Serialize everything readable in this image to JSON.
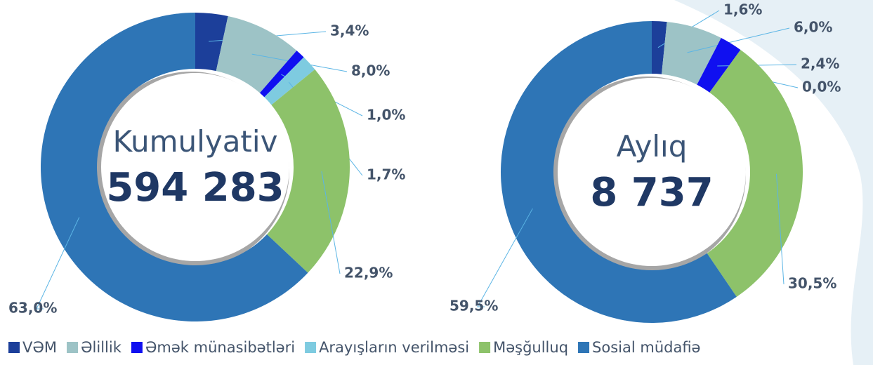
{
  "chart_data": [
    {
      "type": "pie",
      "center_label": "Kumulyativ",
      "center_value": "594 283",
      "categories": [
        "VƏM",
        "Əlillik",
        "Əmək münasibətləri",
        "Arayışların verilməsi",
        "Məşğulluq",
        "Sosial müdafiə"
      ],
      "values": [
        3.4,
        8.0,
        1.0,
        1.7,
        22.9,
        63.0
      ],
      "value_labels": [
        "3,4%",
        "8,0%",
        "1,0%",
        "1,7%",
        "22,9%",
        "63,0%"
      ],
      "colors": [
        "#1c3f9a",
        "#9dc3c6",
        "#1010f0",
        "#7ecbe0",
        "#8dc26a",
        "#2e75b6"
      ]
    },
    {
      "type": "pie",
      "center_label": "Aylıq",
      "center_value": "8 737",
      "categories": [
        "VƏM",
        "Əlillik",
        "Əmək münasibətləri",
        "Arayışların verilməsi",
        "Məşğulluq",
        "Sosial müdafiə"
      ],
      "values": [
        1.6,
        6.0,
        2.4,
        0.0,
        30.5,
        59.5
      ],
      "value_labels": [
        "1,6%",
        "6,0%",
        "2,4%",
        "0,0%",
        "30,5%",
        "59,5%"
      ],
      "colors": [
        "#1c3f9a",
        "#9dc3c6",
        "#1010f0",
        "#7ecbe0",
        "#8dc26a",
        "#2e75b6"
      ]
    }
  ]
}
